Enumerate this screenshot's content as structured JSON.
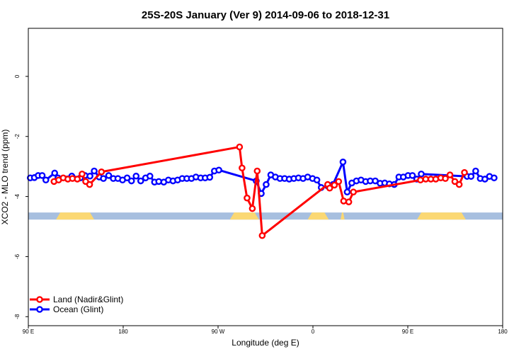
{
  "chart_data": {
    "type": "line",
    "title": "25S-20S January (Ver 9)   2014-09-06 to 2018-12-31",
    "xlabel": "Longitude (deg E)",
    "ylabel": "XCO2 - MLO trend (ppm)",
    "xlim": [
      90,
      450
    ],
    "ylim": [
      -8.3,
      1.6
    ],
    "x_ticks": [
      {
        "value": 90,
        "label": "90 E"
      },
      {
        "value": 162,
        "label": "180"
      },
      {
        "value": 234,
        "label": "90 W"
      },
      {
        "value": 306,
        "label": "0"
      },
      {
        "value": 378,
        "label": "90 E"
      },
      {
        "value": 450,
        "label": "180"
      }
    ],
    "y_ticks": [
      {
        "value": 0,
        "label": "0"
      },
      {
        "value": -2,
        "label": "-2"
      },
      {
        "value": -4,
        "label": "-4"
      },
      {
        "value": -6,
        "label": "-6"
      },
      {
        "value": -8,
        "label": "-8"
      }
    ],
    "landmask": {
      "y_center": -4.65,
      "ocean_color": "#a7bfdf",
      "land_color": "#fbd873",
      "land_ranges": [
        [
          111,
          140
        ],
        [
          243,
          265
        ],
        [
          302,
          318
        ],
        [
          327,
          330
        ],
        [
          385,
          422
        ]
      ]
    },
    "legend": {
      "position": "bottom-left",
      "entries": [
        {
          "name": "Land (Nadir&Glint)",
          "color": "#ff0000"
        },
        {
          "name": "Ocean (Glint)",
          "color": "#0000ff"
        }
      ]
    },
    "series": [
      {
        "name": "Ocean (Glint)",
        "color": "#0000ff",
        "points": [
          [
            91.5,
            -3.38
          ],
          [
            94.6,
            -3.37
          ],
          [
            97.5,
            -3.3
          ],
          [
            100.5,
            -3.3
          ],
          [
            103.3,
            -3.45
          ],
          [
            110,
            -3.22
          ],
          [
            112.5,
            -3.38
          ],
          [
            123,
            -3.32
          ],
          [
            129.5,
            -3.38
          ],
          [
            133,
            -3.3
          ],
          [
            136.8,
            -3.32
          ],
          [
            140,
            -3.15
          ],
          [
            143.8,
            -3.35
          ],
          [
            147,
            -3.4
          ],
          [
            151,
            -3.3
          ],
          [
            154.5,
            -3.4
          ],
          [
            158,
            -3.4
          ],
          [
            161.5,
            -3.45
          ],
          [
            165,
            -3.38
          ],
          [
            168.3,
            -3.48
          ],
          [
            171.8,
            -3.32
          ],
          [
            175.3,
            -3.48
          ],
          [
            179,
            -3.38
          ],
          [
            182.3,
            -3.32
          ],
          [
            185.8,
            -3.52
          ],
          [
            189,
            -3.5
          ],
          [
            192.8,
            -3.52
          ],
          [
            196.3,
            -3.45
          ],
          [
            199.8,
            -3.48
          ],
          [
            203.3,
            -3.45
          ],
          [
            206.8,
            -3.4
          ],
          [
            210.3,
            -3.4
          ],
          [
            213.8,
            -3.4
          ],
          [
            217.2,
            -3.35
          ],
          [
            220.8,
            -3.38
          ],
          [
            224.2,
            -3.38
          ],
          [
            227.7,
            -3.36
          ],
          [
            231.2,
            -3.15
          ],
          [
            234.6,
            -3.12
          ],
          [
            263,
            -3.48
          ],
          [
            266.8,
            -3.9
          ],
          [
            270.5,
            -3.6
          ],
          [
            274,
            -3.28
          ],
          [
            277.5,
            -3.35
          ],
          [
            281,
            -3.4
          ],
          [
            284.5,
            -3.4
          ],
          [
            288,
            -3.42
          ],
          [
            291.5,
            -3.4
          ],
          [
            295,
            -3.38
          ],
          [
            298.5,
            -3.4
          ],
          [
            302,
            -3.35
          ],
          [
            305.7,
            -3.4
          ],
          [
            309,
            -3.45
          ],
          [
            312.3,
            -3.7
          ],
          [
            317.2,
            -3.65
          ],
          [
            321.2,
            -3.6
          ],
          [
            328.8,
            -2.85
          ],
          [
            332,
            -3.85
          ],
          [
            335.5,
            -3.55
          ],
          [
            339,
            -3.48
          ],
          [
            342.5,
            -3.45
          ],
          [
            346,
            -3.5
          ],
          [
            349.5,
            -3.48
          ],
          [
            353.3,
            -3.48
          ],
          [
            357,
            -3.56
          ],
          [
            360.5,
            -3.55
          ],
          [
            364,
            -3.58
          ],
          [
            367.7,
            -3.6
          ],
          [
            371.2,
            -3.35
          ],
          [
            374.6,
            -3.35
          ],
          [
            378.2,
            -3.3
          ],
          [
            381.5,
            -3.3
          ],
          [
            384.8,
            -3.42
          ],
          [
            388.2,
            -3.25
          ],
          [
            423,
            -3.33
          ],
          [
            426,
            -3.33
          ],
          [
            429.5,
            -3.15
          ],
          [
            433,
            -3.4
          ],
          [
            436.5,
            -3.42
          ],
          [
            440,
            -3.33
          ],
          [
            443.5,
            -3.38
          ]
        ]
      },
      {
        "name": "Land (Nadir&Glint)",
        "color": "#ff0000",
        "points": [
          [
            109.5,
            -3.5
          ],
          [
            113,
            -3.45
          ],
          [
            116.5,
            -3.38
          ],
          [
            120,
            -3.42
          ],
          [
            123.5,
            -3.4
          ],
          [
            127.2,
            -3.42
          ],
          [
            130.8,
            -3.25
          ],
          [
            133.5,
            -3.5
          ],
          [
            136.5,
            -3.6
          ],
          [
            145.5,
            -3.18
          ],
          [
            250.3,
            -2.35
          ],
          [
            252.2,
            -3.05
          ],
          [
            256,
            -4.05
          ],
          [
            260,
            -4.4
          ],
          [
            263.7,
            -3.15
          ],
          [
            267.5,
            -5.3
          ],
          [
            317.2,
            -3.6
          ],
          [
            318.7,
            -3.72
          ],
          [
            322.3,
            -3.62
          ],
          [
            325.5,
            -3.5
          ],
          [
            329.3,
            -4.15
          ],
          [
            333.2,
            -4.18
          ],
          [
            336.7,
            -3.85
          ],
          [
            387.6,
            -3.45
          ],
          [
            391.6,
            -3.42
          ],
          [
            395.5,
            -3.42
          ],
          [
            399.2,
            -3.42
          ],
          [
            403,
            -3.38
          ],
          [
            406.5,
            -3.4
          ],
          [
            410,
            -3.28
          ],
          [
            413.7,
            -3.5
          ],
          [
            417,
            -3.6
          ],
          [
            421,
            -3.2
          ]
        ]
      }
    ]
  }
}
